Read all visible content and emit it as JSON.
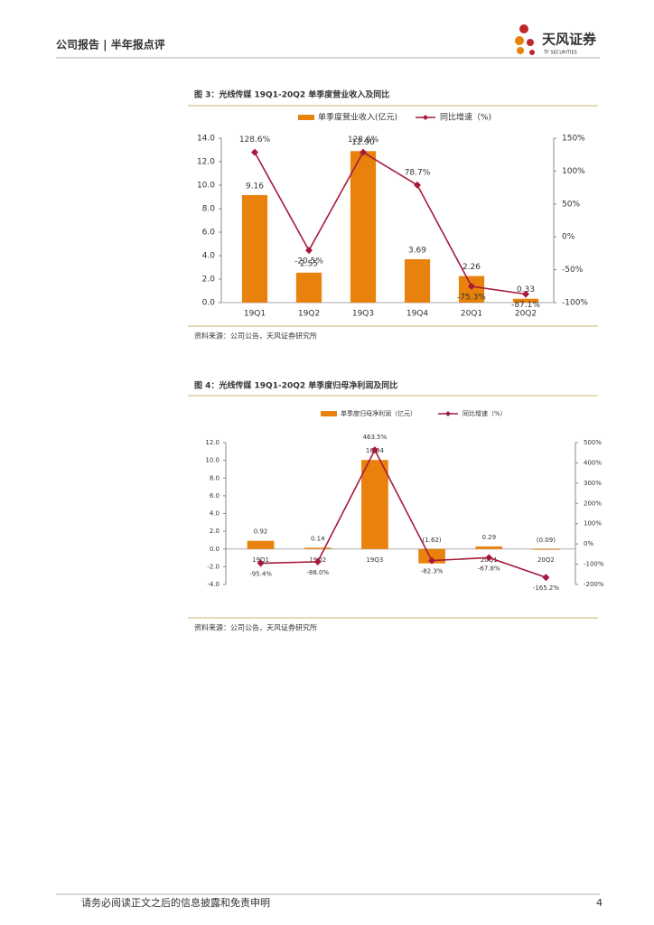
{
  "header": {
    "title": "公司报告 | 半年报点评",
    "brand": "天风证券",
    "brand_en": "TF SECURITIES"
  },
  "chart_data": [
    {
      "type": "bar_line",
      "title": "图 3：光线传媒 19Q1-20Q2 单季度营业收入及同比",
      "categories": [
        "19Q1",
        "19Q2",
        "19Q3",
        "19Q4",
        "20Q1",
        "20Q2"
      ],
      "series": [
        {
          "name": "单季度营业收入(亿元)",
          "type": "bar",
          "color": "#e8820c",
          "values": [
            9.16,
            2.55,
            12.9,
            3.69,
            2.26,
            0.33
          ],
          "value_labels": [
            "9.16",
            "2.55",
            "12.90",
            "3.69",
            "2.26",
            "0.33"
          ]
        },
        {
          "name": "同比增速（%)",
          "type": "line",
          "axis": "y2",
          "color": "#a6193c",
          "values": [
            128.6,
            -20.5,
            128.6,
            78.7,
            -75.3,
            -87.1
          ],
          "value_labels": [
            "128.6%",
            "-20.5%",
            "128.6%",
            "78.7%",
            "-75.3%",
            "-87.1%"
          ]
        }
      ],
      "ylim": [
        0,
        14
      ],
      "yticks": [
        {
          "value": 0,
          "label": "0.0"
        },
        {
          "value": 2,
          "label": "2.0"
        },
        {
          "value": 4,
          "label": "4.0"
        },
        {
          "value": 6,
          "label": "6.0"
        },
        {
          "value": 8,
          "label": "8.0"
        },
        {
          "value": 10,
          "label": "10.0"
        },
        {
          "value": 12,
          "label": "12.0"
        },
        {
          "value": 14,
          "label": "14.0"
        }
      ],
      "y2lim": [
        -100,
        150
      ],
      "y2ticks": [
        {
          "value": -100,
          "label": "-100%"
        },
        {
          "value": -50,
          "label": "-50%"
        },
        {
          "value": 0,
          "label": "0%"
        },
        {
          "value": 50,
          "label": "50%"
        },
        {
          "value": 100,
          "label": "100%"
        },
        {
          "value": 150,
          "label": "150%"
        }
      ],
      "source": "资料来源：公司公告，天风证券研究所"
    },
    {
      "type": "bar_line",
      "title": "图 4：光线传媒 19Q1-20Q2 单季度归母净利润及同比",
      "categories": [
        "19Q1",
        "19Q2",
        "19Q3",
        "19Q4",
        "20Q1",
        "20Q2"
      ],
      "series": [
        {
          "name": "单季度归母净利润（亿元）",
          "type": "bar",
          "color": "#e8820c",
          "values": [
            0.92,
            0.14,
            10.04,
            -1.62,
            0.29,
            -0.09
          ],
          "value_labels": [
            "0.92",
            "0.14",
            "10.04",
            "(1.62)",
            "0.29",
            "(0.09)"
          ]
        },
        {
          "name": "同比增速（%）",
          "type": "line",
          "axis": "y2",
          "color": "#a6193c",
          "values": [
            -95.4,
            -88.0,
            463.5,
            -82.3,
            -67.8,
            -165.2
          ],
          "value_labels": [
            "-95.4%",
            "-88.0%",
            "463.5%",
            "-82.3%",
            "-67.8%",
            "-165.2%"
          ]
        }
      ],
      "ylim": [
        -4,
        12
      ],
      "yticks": [
        {
          "value": -4,
          "label": "-4.0"
        },
        {
          "value": -2,
          "label": "-2.0"
        },
        {
          "value": 0,
          "label": "0.0"
        },
        {
          "value": 2,
          "label": "2.0"
        },
        {
          "value": 4,
          "label": "4.0"
        },
        {
          "value": 6,
          "label": "6.0"
        },
        {
          "value": 8,
          "label": "8.0"
        },
        {
          "value": 10,
          "label": "10.0"
        },
        {
          "value": 12,
          "label": "12.0"
        }
      ],
      "y2lim": [
        -200,
        500
      ],
      "y2ticks": [
        {
          "value": -200,
          "label": "-200%"
        },
        {
          "value": -100,
          "label": "-100%"
        },
        {
          "value": 0,
          "label": "0%"
        },
        {
          "value": 100,
          "label": "100%"
        },
        {
          "value": 200,
          "label": "200%"
        },
        {
          "value": 300,
          "label": "300%"
        },
        {
          "value": 400,
          "label": "400%"
        },
        {
          "value": 500,
          "label": "500%"
        }
      ],
      "source": "资料来源：公司公告，天风证券研究所"
    }
  ],
  "footer": {
    "disclaimer": "请务必阅读正文之后的信息披露和免责申明",
    "page": "4"
  }
}
